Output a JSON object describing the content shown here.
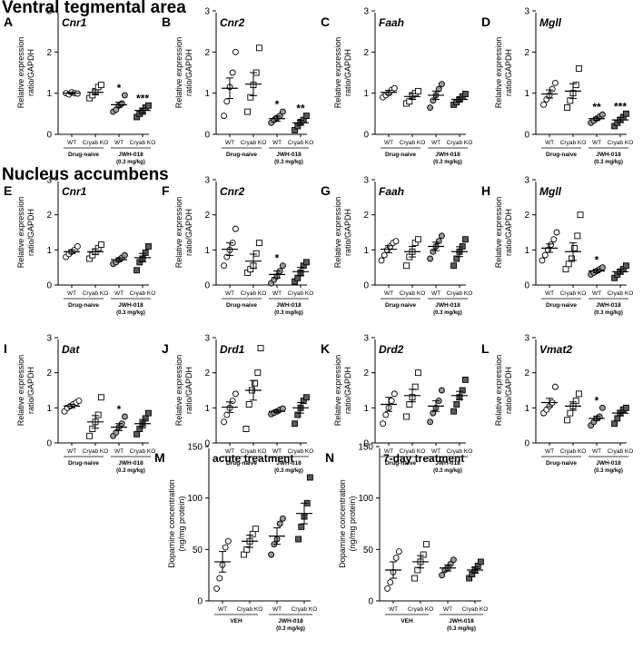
{
  "sections": [
    {
      "title": "Ventral tegmental area"
    },
    {
      "title": "Nucleus accumbens"
    }
  ],
  "colors": {
    "wt_naive": "#ffffff",
    "ko_naive": "#ffffff",
    "wt_drug": "#9a9a9a",
    "ko_drug": "#5a5a5a",
    "stroke": "#000000"
  },
  "chart_data": [
    {
      "letter": "A",
      "type": "scatter",
      "title": "Cnr1",
      "ylabel": [
        "Relative expression",
        "ratio/GAPDH"
      ],
      "ylim": [
        0,
        3
      ],
      "yticks": [
        0,
        1,
        2,
        3
      ],
      "categories": [
        "WT",
        "Cryab KO",
        "WT",
        "Cryab KO"
      ],
      "group_labels": [
        [
          "Drug-naive"
        ],
        [
          "JWH-018",
          "(0.3 mg/kg)"
        ]
      ],
      "means": [
        1.0,
        1.02,
        0.72,
        0.58
      ],
      "sems": [
        0.02,
        0.06,
        0.06,
        0.06
      ],
      "points": [
        [
          1.0,
          0.97,
          1.02,
          1.0,
          0.99
        ],
        [
          0.88,
          0.95,
          1.05,
          1.15,
          1.2
        ],
        [
          0.55,
          0.6,
          0.7,
          0.75,
          0.95
        ],
        [
          0.42,
          0.5,
          0.55,
          0.65,
          0.7
        ]
      ],
      "sig": [
        "",
        "",
        "*",
        "***"
      ]
    },
    {
      "letter": "B",
      "type": "scatter",
      "title": "Cnr2",
      "ylabel": [
        "Relative expression",
        "ratio/GAPDH"
      ],
      "ylim": [
        0,
        3
      ],
      "yticks": [
        0,
        1,
        2,
        3
      ],
      "categories": [
        "WT",
        "Cryab KO",
        "WT",
        "Cryab KO"
      ],
      "group_labels": [
        [
          "Drug-naive"
        ],
        [
          "JWH-018",
          "(0.3 mg/kg)"
        ]
      ],
      "means": [
        1.12,
        1.22,
        0.38,
        0.28
      ],
      "sems": [
        0.25,
        0.28,
        0.06,
        0.06
      ],
      "points": [
        [
          0.45,
          0.8,
          1.15,
          1.5,
          2.0
        ],
        [
          0.55,
          0.9,
          1.2,
          1.5,
          2.1
        ],
        [
          0.28,
          0.35,
          0.4,
          0.45,
          0.55
        ],
        [
          0.1,
          0.2,
          0.3,
          0.35,
          0.45
        ]
      ],
      "sig": [
        "",
        "",
        "*",
        "**"
      ]
    },
    {
      "letter": "C",
      "type": "scatter",
      "title": "Faah",
      "ylabel": [
        "Relative expression",
        "ratio/GAPDH"
      ],
      "ylim": [
        0,
        3
      ],
      "yticks": [
        0,
        1,
        2,
        3
      ],
      "categories": [
        "WT",
        "Cryab KO",
        "WT",
        "Cryab KO"
      ],
      "group_labels": [
        [
          "Drug-naive"
        ],
        [
          "JWH-018",
          "(0.3 mg/kg)"
        ]
      ],
      "means": [
        1.02,
        0.92,
        0.95,
        0.85
      ],
      "sems": [
        0.05,
        0.07,
        0.1,
        0.05
      ],
      "points": [
        [
          0.9,
          0.95,
          1.0,
          1.08,
          1.12
        ],
        [
          0.75,
          0.8,
          0.95,
          1.0,
          1.05
        ],
        [
          0.65,
          0.82,
          0.95,
          1.1,
          1.22
        ],
        [
          0.72,
          0.78,
          0.85,
          0.92,
          0.98
        ]
      ],
      "sig": [
        "",
        "",
        "",
        ""
      ]
    },
    {
      "letter": "D",
      "type": "scatter",
      "title": "Mgll",
      "ylabel": [
        "Relative expression",
        "ratio/GAPDH"
      ],
      "ylim": [
        0,
        3
      ],
      "yticks": [
        0,
        1,
        2,
        3
      ],
      "categories": [
        "WT",
        "Cryab KO",
        "WT",
        "Cryab KO"
      ],
      "group_labels": [
        [
          "Drug-naive"
        ],
        [
          "JWH-018",
          "(0.3 mg/kg)"
        ]
      ],
      "means": [
        0.98,
        1.05,
        0.38,
        0.35
      ],
      "sems": [
        0.1,
        0.18,
        0.04,
        0.06
      ],
      "points": [
        [
          0.72,
          0.85,
          0.95,
          1.1,
          1.25
        ],
        [
          0.65,
          0.82,
          1.0,
          1.2,
          1.6
        ],
        [
          0.28,
          0.33,
          0.38,
          0.43,
          0.48
        ],
        [
          0.2,
          0.28,
          0.35,
          0.42,
          0.5
        ]
      ],
      "sig": [
        "",
        "",
        "**",
        "***"
      ]
    },
    {
      "letter": "E",
      "type": "scatter",
      "title": "Cnr1",
      "ylabel": [
        "Relative expression",
        "ratio/GAPDH"
      ],
      "ylim": [
        0,
        3
      ],
      "yticks": [
        0,
        1,
        2,
        3
      ],
      "categories": [
        "WT",
        "Cryab KO",
        "WT",
        "Cryab KO"
      ],
      "group_labels": [
        [
          "Drug-naive"
        ],
        [
          "JWH-018",
          "(0.3 mg/kg)"
        ]
      ],
      "means": [
        0.95,
        0.95,
        0.72,
        0.78
      ],
      "sems": [
        0.05,
        0.08,
        0.05,
        0.12
      ],
      "points": [
        [
          0.8,
          0.88,
          0.95,
          1.0,
          1.1
        ],
        [
          0.75,
          0.85,
          0.95,
          1.05,
          1.15
        ],
        [
          0.6,
          0.65,
          0.72,
          0.78,
          0.85
        ],
        [
          0.42,
          0.65,
          0.75,
          0.92,
          1.1
        ]
      ],
      "sig": [
        "",
        "",
        "",
        ""
      ]
    },
    {
      "letter": "F",
      "type": "scatter",
      "title": "Cnr2",
      "ylabel": [
        "Relative expression",
        "ratio/GAPDH"
      ],
      "ylim": [
        0,
        3
      ],
      "yticks": [
        0,
        1,
        2,
        3
      ],
      "categories": [
        "WT",
        "Cryab KO",
        "WT",
        "Cryab KO"
      ],
      "group_labels": [
        [
          "Drug-naive"
        ],
        [
          "JWH-018",
          "(0.3 mg/kg)"
        ]
      ],
      "means": [
        1.02,
        0.68,
        0.3,
        0.38
      ],
      "sems": [
        0.18,
        0.2,
        0.1,
        0.12
      ],
      "points": [
        [
          0.55,
          0.8,
          1.0,
          1.2,
          1.6
        ],
        [
          0.35,
          0.45,
          0.55,
          0.9,
          1.2
        ],
        [
          0.05,
          0.15,
          0.25,
          0.4,
          0.55
        ],
        [
          0.1,
          0.2,
          0.35,
          0.55,
          0.65
        ]
      ],
      "sig": [
        "",
        "",
        "*",
        ""
      ]
    },
    {
      "letter": "G",
      "type": "scatter",
      "title": "Faah",
      "ylabel": [
        "Relative expression",
        "ratio/GAPDH"
      ],
      "ylim": [
        0,
        3
      ],
      "yticks": [
        0,
        1,
        2,
        3
      ],
      "categories": [
        "WT",
        "Cryab KO",
        "WT",
        "Cryab KO"
      ],
      "group_labels": [
        [
          "Drug-naive"
        ],
        [
          "JWH-018",
          "(0.3 mg/kg)"
        ]
      ],
      "means": [
        1.02,
        0.95,
        1.1,
        0.95
      ],
      "sems": [
        0.1,
        0.15,
        0.12,
        0.14
      ],
      "points": [
        [
          0.7,
          0.85,
          1.0,
          1.1,
          1.2,
          1.25
        ],
        [
          0.55,
          0.8,
          0.95,
          1.2,
          1.3
        ],
        [
          0.75,
          0.95,
          1.1,
          1.25,
          1.4
        ],
        [
          0.55,
          0.75,
          0.95,
          1.1,
          1.3
        ]
      ],
      "sig": [
        "",
        "",
        "",
        ""
      ]
    },
    {
      "letter": "H",
      "type": "scatter",
      "title": "Mgll",
      "ylabel": [
        "Relative expression",
        "ratio/GAPDH"
      ],
      "ylim": [
        0,
        3
      ],
      "yticks": [
        0,
        1,
        2,
        3
      ],
      "categories": [
        "WT",
        "Cryab KO",
        "WT",
        "Cryab KO"
      ],
      "group_labels": [
        [
          "Drug-naive"
        ],
        [
          "JWH-018",
          "(0.3 mg/kg)"
        ]
      ],
      "means": [
        1.05,
        0.95,
        0.4,
        0.38
      ],
      "sems": [
        0.12,
        0.25,
        0.05,
        0.07
      ],
      "points": [
        [
          0.7,
          0.85,
          1.0,
          1.15,
          1.3,
          1.5
        ],
        [
          0.45,
          0.6,
          0.75,
          1.05,
          1.4,
          2.0
        ],
        [
          0.3,
          0.35,
          0.4,
          0.45,
          0.5
        ],
        [
          0.2,
          0.3,
          0.38,
          0.45,
          0.55
        ]
      ],
      "sig": [
        "",
        "",
        "*",
        ""
      ]
    },
    {
      "letter": "I",
      "type": "scatter",
      "title": "Dat",
      "ylabel": [
        "Relative expression",
        "ratio/GAPDH"
      ],
      "ylim": [
        0,
        3
      ],
      "yticks": [
        0,
        1,
        2,
        3
      ],
      "categories": [
        "WT",
        "Cryab KO",
        "WT",
        "Cryab KO"
      ],
      "group_labels": [
        [
          "Drug-naive"
        ],
        [
          "JWH-018",
          "(0.3 mg/kg)"
        ]
      ],
      "means": [
        1.05,
        0.6,
        0.45,
        0.55
      ],
      "sems": [
        0.05,
        0.18,
        0.1,
        0.12
      ],
      "points": [
        [
          0.9,
          1.0,
          1.05,
          1.1,
          1.15,
          1.2
        ],
        [
          0.2,
          0.4,
          0.6,
          0.8,
          1.3
        ],
        [
          0.2,
          0.3,
          0.45,
          0.55,
          0.75
        ],
        [
          0.25,
          0.4,
          0.55,
          0.7,
          0.85
        ]
      ],
      "sig": [
        "",
        "",
        "*",
        ""
      ]
    },
    {
      "letter": "J",
      "type": "scatter",
      "title": "Drd1",
      "ylabel": [
        "Relative expression",
        "ratio/GAPDH"
      ],
      "ylim": [
        0,
        3
      ],
      "yticks": [
        0,
        1,
        2,
        3
      ],
      "categories": [
        "WT",
        "Cryab KO",
        "WT",
        "Cryab KO"
      ],
      "group_labels": [
        [
          "Drug-naive"
        ],
        [
          "JWH-018",
          "(0.3 mg/kg)"
        ]
      ],
      "means": [
        1.02,
        1.5,
        0.9,
        1.0
      ],
      "sems": [
        0.15,
        0.28,
        0.04,
        0.15
      ],
      "points": [
        [
          0.6,
          0.8,
          1.0,
          1.2,
          1.4
        ],
        [
          0.4,
          1.1,
          1.5,
          1.7,
          2.0,
          2.7
        ],
        [
          0.82,
          0.86,
          0.9,
          0.95,
          0.98
        ],
        [
          0.55,
          0.8,
          1.0,
          1.2,
          1.3
        ]
      ],
      "sig": [
        "",
        "",
        "",
        ""
      ]
    },
    {
      "letter": "K",
      "type": "scatter",
      "title": "Drd2",
      "ylabel": [
        "Relative expression",
        "ratio/GAPDH"
      ],
      "ylim": [
        0,
        3
      ],
      "yticks": [
        0,
        1,
        2,
        3
      ],
      "categories": [
        "WT",
        "Cryab KO",
        "WT",
        "Cryab KO"
      ],
      "group_labels": [
        [
          "Drug-naive"
        ],
        [
          "JWH-018",
          "(0.3 mg/kg)"
        ]
      ],
      "means": [
        1.1,
        1.35,
        1.05,
        1.35
      ],
      "sems": [
        0.2,
        0.18,
        0.15,
        0.12
      ],
      "points": [
        [
          0.55,
          0.8,
          1.0,
          1.2,
          1.4
        ],
        [
          0.75,
          1.1,
          1.3,
          1.6,
          2.0
        ],
        [
          0.6,
          0.85,
          1.0,
          1.2,
          1.5
        ],
        [
          0.9,
          1.1,
          1.3,
          1.5,
          1.8
        ]
      ],
      "sig": [
        "",
        "",
        "",
        ""
      ]
    },
    {
      "letter": "L",
      "type": "scatter",
      "title": "Vmat2",
      "ylabel": [
        "Relative expression",
        "ratio/GAPDH"
      ],
      "ylim": [
        0,
        3
      ],
      "yticks": [
        0,
        1,
        2,
        3
      ],
      "categories": [
        "WT",
        "Cryab KO",
        "WT",
        "Cryab KO"
      ],
      "group_labels": [
        [
          "Drug-naive"
        ],
        [
          "JWH-018",
          "(0.3 mg/kg)"
        ]
      ],
      "means": [
        1.15,
        1.05,
        0.7,
        0.85
      ],
      "sems": [
        0.12,
        0.12,
        0.06,
        0.08
      ],
      "points": [
        [
          0.85,
          0.95,
          1.05,
          1.15,
          1.6
        ],
        [
          0.65,
          0.85,
          1.05,
          1.2,
          1.4
        ],
        [
          0.5,
          0.6,
          0.7,
          0.75,
          1.0
        ],
        [
          0.55,
          0.7,
          0.85,
          0.95,
          1.0
        ]
      ],
      "sig": [
        "",
        "",
        "*",
        ""
      ]
    },
    {
      "letter": "M",
      "type": "scatter",
      "title": "acute treatment",
      "ylabel": [
        "Dopamine concentration",
        "(ng/mg protein)"
      ],
      "ylim": [
        0,
        150
      ],
      "yticks": [
        0,
        50,
        100,
        150
      ],
      "categories": [
        "WT",
        "Cryab KO",
        "WT",
        "Cryab KO"
      ],
      "group_labels": [
        [
          "VEH"
        ],
        [
          "JWH-018",
          "(0.3 mg/kg)"
        ]
      ],
      "means": [
        38,
        58,
        63,
        85
      ],
      "sems": [
        10,
        6,
        8,
        10
      ],
      "points": [
        [
          12,
          22,
          35,
          52,
          58
        ],
        [
          45,
          50,
          58,
          65,
          70
        ],
        [
          45,
          55,
          60,
          75,
          80
        ],
        [
          60,
          72,
          82,
          95,
          120
        ]
      ],
      "sig": [
        "",
        "",
        "",
        ""
      ]
    },
    {
      "letter": "N",
      "type": "scatter",
      "title": "7-day treatment",
      "ylabel": [
        "Dopamine concentration",
        "(ng/mg protein)"
      ],
      "ylim": [
        0,
        150
      ],
      "yticks": [
        0,
        50,
        100,
        150
      ],
      "categories": [
        "WT",
        "Cryab KO",
        "WT",
        "Cryab KO"
      ],
      "group_labels": [
        [
          "VEH"
        ],
        [
          "JWH-018",
          "(0.3 mg/kg)"
        ]
      ],
      "means": [
        30,
        38,
        32,
        30
      ],
      "sems": [
        8,
        6,
        3,
        3
      ],
      "points": [
        [
          12,
          18,
          28,
          42,
          48
        ],
        [
          22,
          30,
          38,
          45,
          55
        ],
        [
          25,
          30,
          32,
          36,
          40
        ],
        [
          22,
          26,
          30,
          34,
          38
        ]
      ],
      "sig": [
        "",
        "",
        "",
        ""
      ]
    }
  ]
}
